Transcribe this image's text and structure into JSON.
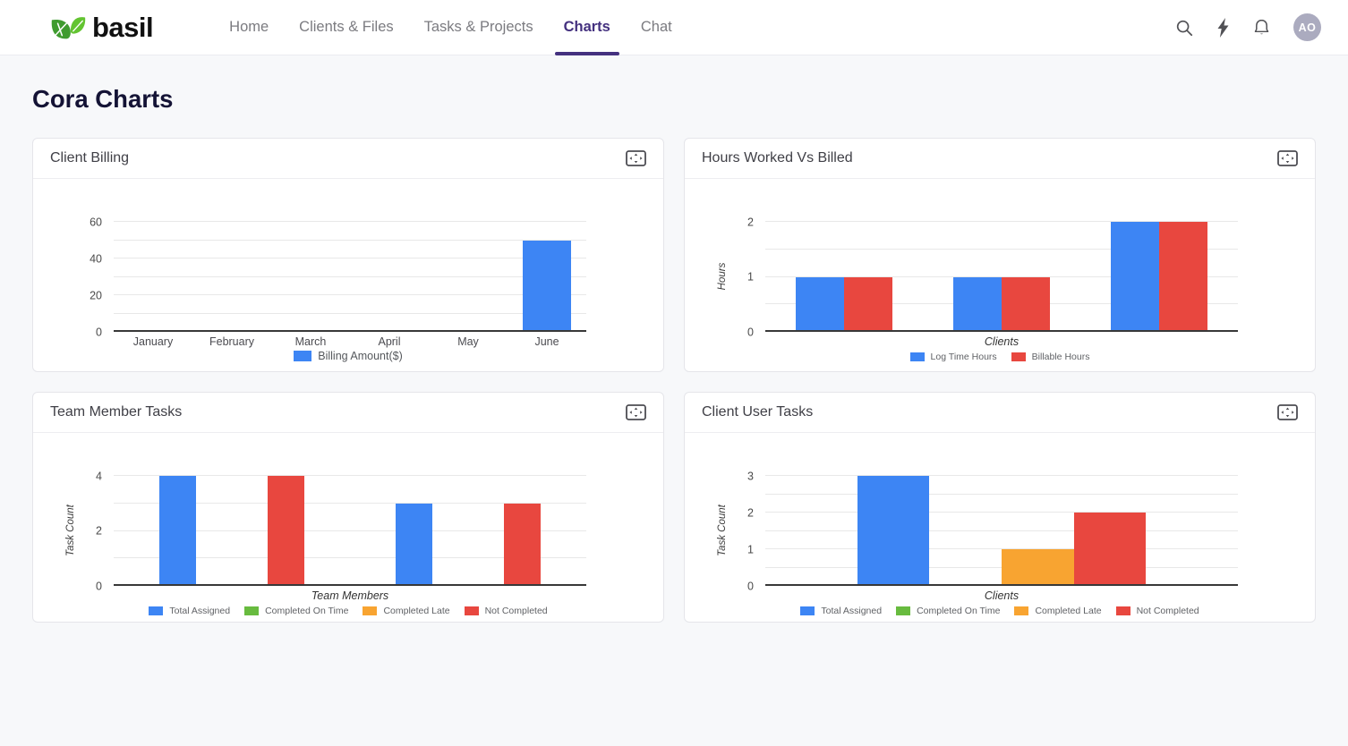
{
  "page_title": "Cora Charts",
  "header": {
    "logo_text": "basil",
    "nav_items": [
      {
        "label": "Home",
        "active": false
      },
      {
        "label": "Clients & Files",
        "active": false
      },
      {
        "label": "Tasks & Projects",
        "active": false
      },
      {
        "label": "Charts",
        "active": true
      },
      {
        "label": "Chat",
        "active": false
      }
    ],
    "icons": [
      "search-icon",
      "flash-icon",
      "notifications-icon"
    ],
    "avatar_initials": "AO"
  },
  "colors": {
    "accent_purple": "#44317f",
    "title_navy": "#141335",
    "series_blue": "#3d85f4",
    "series_red": "#e8473f",
    "series_orange": "#f8a431",
    "series_green": "#68bb3f",
    "logo_green_dark": "#3f9b2f",
    "logo_green_light": "#63c431"
  },
  "chart_data": [
    {
      "card_title": "Client Billing",
      "type": "bar",
      "categories": [
        "January",
        "February",
        "March",
        "April",
        "May",
        "June"
      ],
      "series": [
        {
          "name": "Billing Amount($)",
          "color": "#3d85f4",
          "values": [
            0,
            0,
            0,
            0,
            0,
            50
          ]
        }
      ],
      "ylim": [
        0,
        60
      ],
      "yticks": [
        0,
        20,
        40,
        60
      ],
      "grid_step": 10,
      "xlabel": "",
      "ylabel": "",
      "legend_position": "bottom",
      "group_width_pct": 61
    },
    {
      "card_title": "Hours Worked Vs Billed",
      "type": "bar",
      "categories": [
        "",
        "",
        ""
      ],
      "series": [
        {
          "name": "Log Time Hours",
          "color": "#3d85f4",
          "values": [
            1,
            1,
            2
          ]
        },
        {
          "name": "Billable Hours",
          "color": "#e8473f",
          "values": [
            1,
            1,
            2
          ]
        }
      ],
      "ylim": [
        0,
        2
      ],
      "yticks": [
        0,
        1,
        2
      ],
      "grid_step": 0.5,
      "xlabel": "Clients",
      "ylabel": "Hours",
      "legend_position": "bottom",
      "group_width_pct": 61
    },
    {
      "card_title": "Team Member Tasks",
      "type": "bar",
      "categories": [
        "",
        ""
      ],
      "series": [
        {
          "name": "Total Assigned",
          "color": "#3d85f4",
          "values": [
            4,
            3
          ]
        },
        {
          "name": "Completed On Time",
          "color": "#68bb3f",
          "values": [
            0,
            0
          ]
        },
        {
          "name": "Completed Late",
          "color": "#f8a431",
          "values": [
            0,
            0
          ]
        },
        {
          "name": "Not Completed",
          "color": "#e8473f",
          "values": [
            4,
            3
          ]
        }
      ],
      "ylim": [
        0,
        4
      ],
      "yticks": [
        0,
        2,
        4
      ],
      "grid_step": 1,
      "xlabel": "Team Members",
      "ylabel": "Task Count",
      "legend_position": "bottom",
      "group_width_pct": 61
    },
    {
      "card_title": "Client User Tasks",
      "type": "bar",
      "categories": [
        ""
      ],
      "series": [
        {
          "name": "Total Assigned",
          "color": "#3d85f4",
          "values": [
            3
          ]
        },
        {
          "name": "Completed On Time",
          "color": "#68bb3f",
          "values": [
            0
          ]
        },
        {
          "name": "Completed Late",
          "color": "#f8a431",
          "values": [
            1
          ]
        },
        {
          "name": "Not Completed",
          "color": "#e8473f",
          "values": [
            2
          ]
        }
      ],
      "ylim": [
        0,
        3
      ],
      "yticks": [
        0,
        1,
        2,
        3
      ],
      "grid_step": 0.5,
      "xlabel": "Clients",
      "ylabel": "Task Count",
      "legend_position": "bottom",
      "group_width_pct": 61
    }
  ]
}
